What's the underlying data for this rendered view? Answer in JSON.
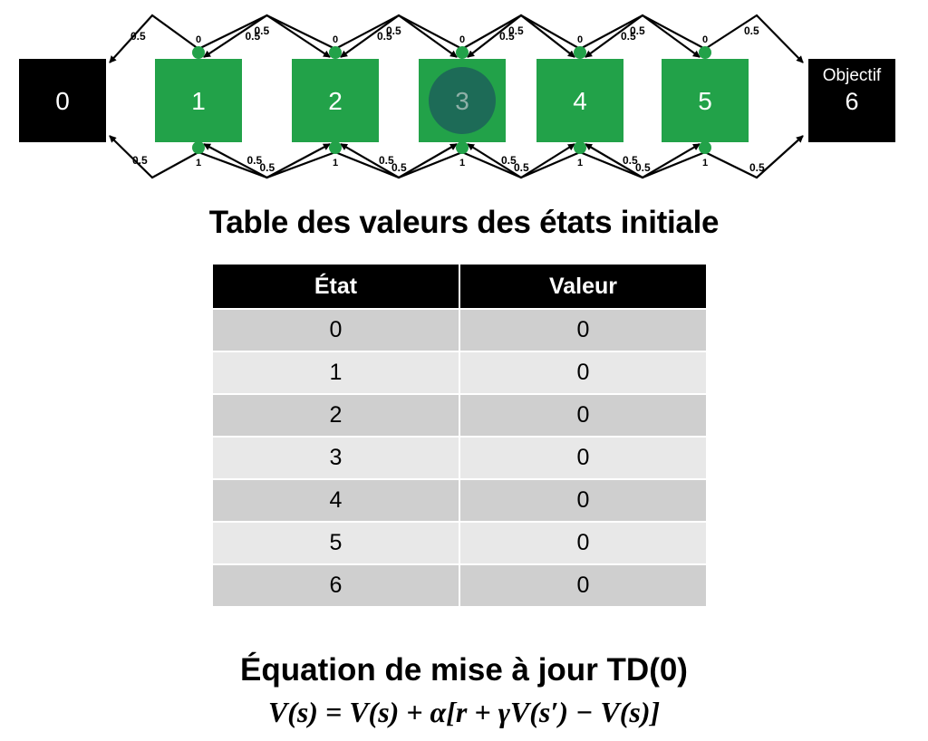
{
  "diagram": {
    "states": [
      {
        "id": "0",
        "label": "0",
        "kind": "terminal",
        "color": "#000000"
      },
      {
        "id": "1",
        "label": "1",
        "kind": "state",
        "color": "#22a249"
      },
      {
        "id": "2",
        "label": "2",
        "kind": "state",
        "color": "#22a249"
      },
      {
        "id": "3",
        "label": "3",
        "kind": "current",
        "color": "#22a249",
        "agent_color": "#1d6b57"
      },
      {
        "id": "4",
        "label": "4",
        "kind": "state",
        "color": "#22a249"
      },
      {
        "id": "5",
        "label": "5",
        "kind": "state",
        "color": "#22a249"
      },
      {
        "id": "6",
        "label": "6",
        "caption": "Objectif",
        "kind": "terminal",
        "color": "#000000"
      }
    ],
    "action_top": "0",
    "action_bottom": "1",
    "transition_probability": "0.5"
  },
  "table": {
    "title": "Table des valeurs des états initiale",
    "headers": [
      "État",
      "Valeur"
    ],
    "rows": [
      [
        "0",
        "0"
      ],
      [
        "1",
        "0"
      ],
      [
        "2",
        "0"
      ],
      [
        "3",
        "0"
      ],
      [
        "4",
        "0"
      ],
      [
        "5",
        "0"
      ],
      [
        "6",
        "0"
      ]
    ]
  },
  "update": {
    "title": "Équation de mise à jour TD(0)",
    "equation": "V(s) = V(s) + α[r + γV(s′) − V(s)]"
  }
}
